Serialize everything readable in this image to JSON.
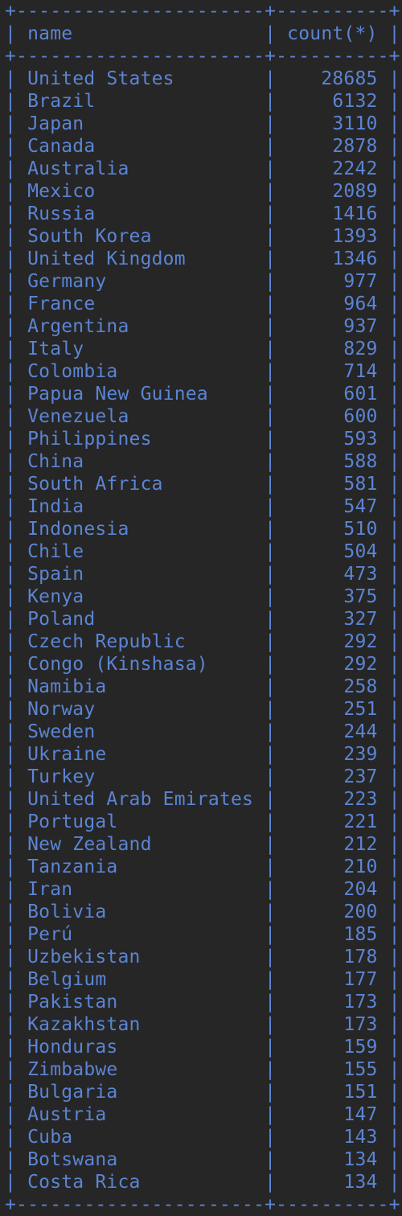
{
  "table": {
    "columns": [
      "name",
      "count(*)"
    ],
    "rows": [
      [
        "United States",
        "28685"
      ],
      [
        "Brazil",
        "6132"
      ],
      [
        "Japan",
        "3110"
      ],
      [
        "Canada",
        "2878"
      ],
      [
        "Australia",
        "2242"
      ],
      [
        "Mexico",
        "2089"
      ],
      [
        "Russia",
        "1416"
      ],
      [
        "South Korea",
        "1393"
      ],
      [
        "United Kingdom",
        "1346"
      ],
      [
        "Germany",
        "977"
      ],
      [
        "France",
        "964"
      ],
      [
        "Argentina",
        "937"
      ],
      [
        "Italy",
        "829"
      ],
      [
        "Colombia",
        "714"
      ],
      [
        "Papua New Guinea",
        "601"
      ],
      [
        "Venezuela",
        "600"
      ],
      [
        "Philippines",
        "593"
      ],
      [
        "China",
        "588"
      ],
      [
        "South Africa",
        "581"
      ],
      [
        "India",
        "547"
      ],
      [
        "Indonesia",
        "510"
      ],
      [
        "Chile",
        "504"
      ],
      [
        "Spain",
        "473"
      ],
      [
        "Kenya",
        "375"
      ],
      [
        "Poland",
        "327"
      ],
      [
        "Czech Republic",
        "292"
      ],
      [
        "Congo (Kinshasa)",
        "292"
      ],
      [
        "Namibia",
        "258"
      ],
      [
        "Norway",
        "251"
      ],
      [
        "Sweden",
        "244"
      ],
      [
        "Ukraine",
        "239"
      ],
      [
        "Turkey",
        "237"
      ],
      [
        "United Arab Emirates",
        "223"
      ],
      [
        "Portugal",
        "221"
      ],
      [
        "New Zealand",
        "212"
      ],
      [
        "Tanzania",
        "210"
      ],
      [
        "Iran",
        "204"
      ],
      [
        "Bolivia",
        "200"
      ],
      [
        "Perú",
        "185"
      ],
      [
        "Uzbekistan",
        "178"
      ],
      [
        "Belgium",
        "177"
      ],
      [
        "Pakistan",
        "173"
      ],
      [
        "Kazakhstan",
        "173"
      ],
      [
        "Honduras",
        "159"
      ],
      [
        "Zimbabwe",
        "155"
      ],
      [
        "Bulgaria",
        "151"
      ],
      [
        "Austria",
        "147"
      ],
      [
        "Cuba",
        "143"
      ],
      [
        "Botswana",
        "134"
      ],
      [
        "Costa Rica",
        "134"
      ]
    ]
  },
  "colors": {
    "background": "#262626",
    "text": "#5b84d4"
  }
}
